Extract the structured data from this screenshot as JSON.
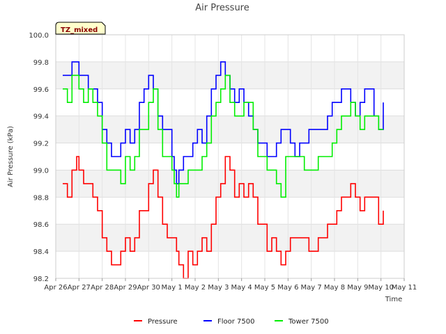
{
  "chart_data": {
    "type": "line",
    "title": "Air Pressure",
    "xlabel": "Time",
    "ylabel": "Air Pressure (kPa)",
    "badge": "TZ_mixed",
    "ylim": [
      98.2,
      100.0
    ],
    "xlim": [
      0,
      15
    ],
    "yticks": [
      "98.2",
      "98.4",
      "98.6",
      "98.8",
      "99.0",
      "99.2",
      "99.4",
      "99.6",
      "99.8",
      "100.0"
    ],
    "xticks": [
      "Apr 26",
      "Apr 27",
      "Apr 28",
      "Apr 29",
      "Apr 30",
      "May 1",
      "May 2",
      "May 3",
      "May 4",
      "May 5",
      "May 6",
      "May 7",
      "May 8",
      "May 9",
      "May 10",
      "May 11"
    ],
    "grid": true,
    "legend_position": "bottom-center",
    "series": [
      {
        "name": "Pressure",
        "color": "#ff0000",
        "x": [
          0.3,
          0.5,
          0.7,
          0.9,
          1.0,
          1.2,
          1.4,
          1.6,
          1.8,
          2.0,
          2.2,
          2.4,
          2.6,
          2.8,
          3.0,
          3.2,
          3.4,
          3.6,
          3.8,
          4.0,
          4.2,
          4.4,
          4.6,
          4.8,
          5.0,
          5.1,
          5.2,
          5.3,
          5.5,
          5.7,
          5.9,
          6.1,
          6.3,
          6.5,
          6.7,
          6.9,
          7.1,
          7.3,
          7.5,
          7.7,
          7.9,
          8.1,
          8.3,
          8.5,
          8.7,
          8.9,
          9.1,
          9.3,
          9.5,
          9.7,
          9.9,
          10.1,
          10.3,
          10.5,
          10.7,
          10.9,
          11.1,
          11.3,
          11.5,
          11.7,
          11.9,
          12.1,
          12.3,
          12.5,
          12.7,
          12.9,
          13.1,
          13.3,
          13.5,
          13.7,
          13.9,
          14.1
        ],
        "y": [
          98.9,
          98.8,
          99.0,
          99.1,
          99.0,
          98.9,
          98.9,
          98.8,
          98.7,
          98.5,
          98.4,
          98.3,
          98.3,
          98.4,
          98.5,
          98.4,
          98.5,
          98.7,
          98.7,
          98.9,
          99.0,
          98.8,
          98.6,
          98.5,
          98.5,
          98.5,
          98.4,
          98.3,
          98.2,
          98.4,
          98.3,
          98.4,
          98.5,
          98.4,
          98.6,
          98.8,
          98.9,
          99.1,
          99.0,
          98.8,
          98.9,
          98.8,
          98.9,
          98.8,
          98.6,
          98.6,
          98.4,
          98.5,
          98.4,
          98.3,
          98.4,
          98.5,
          98.5,
          98.5,
          98.5,
          98.4,
          98.4,
          98.5,
          98.5,
          98.6,
          98.6,
          98.7,
          98.8,
          98.8,
          98.9,
          98.8,
          98.7,
          98.8,
          98.8,
          98.8,
          98.6,
          98.7
        ]
      },
      {
        "name": "Floor 7500",
        "color": "#0000ff",
        "x": [
          0.3,
          0.5,
          0.7,
          0.9,
          1.0,
          1.2,
          1.4,
          1.6,
          1.8,
          2.0,
          2.2,
          2.4,
          2.6,
          2.8,
          3.0,
          3.2,
          3.4,
          3.6,
          3.8,
          4.0,
          4.2,
          4.4,
          4.6,
          4.8,
          5.0,
          5.1,
          5.2,
          5.3,
          5.5,
          5.7,
          5.9,
          6.1,
          6.3,
          6.5,
          6.7,
          6.9,
          7.1,
          7.3,
          7.5,
          7.7,
          7.9,
          8.1,
          8.3,
          8.5,
          8.7,
          8.9,
          9.1,
          9.3,
          9.5,
          9.7,
          9.9,
          10.1,
          10.3,
          10.5,
          10.7,
          10.9,
          11.1,
          11.3,
          11.5,
          11.7,
          11.9,
          12.1,
          12.3,
          12.5,
          12.7,
          12.9,
          13.1,
          13.3,
          13.5,
          13.7,
          13.9,
          14.1
        ],
        "y": [
          99.7,
          99.7,
          99.8,
          99.8,
          99.7,
          99.7,
          99.6,
          99.6,
          99.5,
          99.3,
          99.2,
          99.1,
          99.1,
          99.2,
          99.3,
          99.2,
          99.3,
          99.5,
          99.6,
          99.7,
          99.6,
          99.4,
          99.3,
          99.3,
          99.1,
          99.0,
          98.9,
          99.0,
          99.1,
          99.1,
          99.2,
          99.3,
          99.2,
          99.4,
          99.6,
          99.7,
          99.8,
          99.7,
          99.6,
          99.5,
          99.6,
          99.5,
          99.4,
          99.3,
          99.2,
          99.2,
          99.1,
          99.1,
          99.2,
          99.3,
          99.3,
          99.2,
          99.1,
          99.2,
          99.2,
          99.3,
          99.3,
          99.3,
          99.3,
          99.4,
          99.5,
          99.5,
          99.6,
          99.6,
          99.5,
          99.4,
          99.5,
          99.6,
          99.6,
          99.4,
          99.3,
          99.5
        ]
      },
      {
        "name": "Tower 7500",
        "color": "#00ee00",
        "x": [
          0.3,
          0.5,
          0.7,
          0.9,
          1.0,
          1.2,
          1.4,
          1.6,
          1.8,
          2.0,
          2.2,
          2.4,
          2.6,
          2.8,
          3.0,
          3.2,
          3.4,
          3.6,
          3.8,
          4.0,
          4.2,
          4.4,
          4.6,
          4.8,
          5.0,
          5.1,
          5.2,
          5.3,
          5.5,
          5.7,
          5.9,
          6.1,
          6.3,
          6.5,
          6.7,
          6.9,
          7.1,
          7.3,
          7.5,
          7.7,
          7.9,
          8.1,
          8.3,
          8.5,
          8.7,
          8.9,
          9.1,
          9.3,
          9.5,
          9.7,
          9.9,
          10.1,
          10.3,
          10.5,
          10.7,
          10.9,
          11.1,
          11.3,
          11.5,
          11.7,
          11.9,
          12.1,
          12.3,
          12.5,
          12.7,
          12.9,
          13.1,
          13.3,
          13.5,
          13.7,
          13.9,
          14.1
        ],
        "y": [
          99.6,
          99.5,
          99.7,
          99.7,
          99.6,
          99.5,
          99.6,
          99.5,
          99.4,
          99.2,
          99.0,
          99.0,
          99.0,
          98.9,
          99.1,
          99.0,
          99.1,
          99.3,
          99.3,
          99.5,
          99.6,
          99.3,
          99.1,
          99.1,
          99.0,
          98.9,
          98.8,
          98.9,
          98.9,
          99.0,
          99.0,
          99.0,
          99.1,
          99.2,
          99.4,
          99.5,
          99.6,
          99.7,
          99.5,
          99.4,
          99.4,
          99.5,
          99.5,
          99.3,
          99.1,
          99.1,
          99.0,
          99.0,
          98.9,
          98.8,
          99.1,
          99.1,
          99.1,
          99.1,
          99.0,
          99.0,
          99.0,
          99.1,
          99.1,
          99.1,
          99.2,
          99.3,
          99.4,
          99.4,
          99.5,
          99.4,
          99.3,
          99.4,
          99.4,
          99.4,
          99.3,
          99.3
        ]
      }
    ]
  }
}
